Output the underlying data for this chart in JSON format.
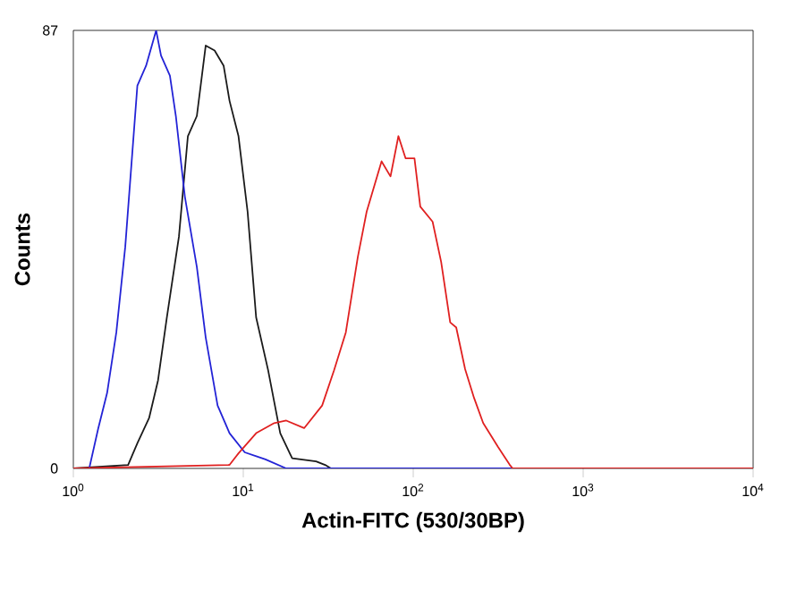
{
  "chart_data": {
    "type": "line",
    "xlabel": "Actin-FITC (530/30BP)",
    "ylabel": "Counts",
    "log": "x",
    "xlim": [
      1,
      10000
    ],
    "ylim": [
      0,
      87
    ],
    "xticks": [
      {
        "value": 1,
        "label": "10$^{0}$"
      },
      {
        "value": 10,
        "label": "10$^{1}$"
      },
      {
        "value": 100,
        "label": "10$^{2}$"
      },
      {
        "value": 1000,
        "label": "10$^{3}$"
      },
      {
        "value": 10000,
        "label": "10$^{4}$"
      }
    ],
    "yticks": [
      0,
      87
    ],
    "series": [
      {
        "color": "#1a1a1a",
        "x": [
          1,
          2.1,
          2.38,
          2.79,
          3.15,
          3.55,
          4.18,
          4.72,
          5.33,
          6.01,
          6.78,
          7.66,
          8.3,
          9.37,
          10.6,
          11.9,
          14.0,
          16.5,
          19.4,
          26.8,
          30.3,
          32.8
        ],
        "values": [
          0,
          0.7,
          5,
          10,
          17.5,
          30,
          46,
          66,
          70,
          84,
          83,
          80,
          73,
          66,
          51,
          30,
          19.5,
          7,
          2,
          1.4,
          0.7,
          0
        ]
      },
      {
        "color": "#2323d6",
        "x": [
          1,
          1.24,
          1.4,
          1.58,
          1.79,
          2.02,
          2.38,
          2.68,
          3.07,
          3.28,
          3.7,
          4.01,
          4.53,
          5.33,
          6.01,
          7.06,
          8.3,
          10.2,
          13.5,
          17.9,
          10000
        ],
        "values": [
          0,
          0,
          7.9,
          15,
          27,
          44,
          76,
          80,
          87,
          82,
          78,
          70,
          54,
          40,
          26,
          12.5,
          7,
          3.2,
          1.8,
          0,
          0
        ]
      },
      {
        "color": "#e02020",
        "x": [
          1,
          8.3,
          9.37,
          11.9,
          15.2,
          17.9,
          22.8,
          29.1,
          34.2,
          40.1,
          47.2,
          53.2,
          65.1,
          73.5,
          81.8,
          90.1,
          101.7,
          110,
          130,
          146,
          165,
          179,
          202,
          228,
          258,
          315,
          370,
          385,
          10000
        ],
        "values": [
          0,
          0.7,
          3,
          7,
          9,
          9.5,
          8,
          12.5,
          19.5,
          27,
          42,
          51,
          61,
          58,
          66,
          61.6,
          61.6,
          52,
          49,
          41,
          29,
          28,
          19.7,
          14,
          9,
          4.3,
          0.7,
          0,
          0
        ]
      }
    ]
  }
}
